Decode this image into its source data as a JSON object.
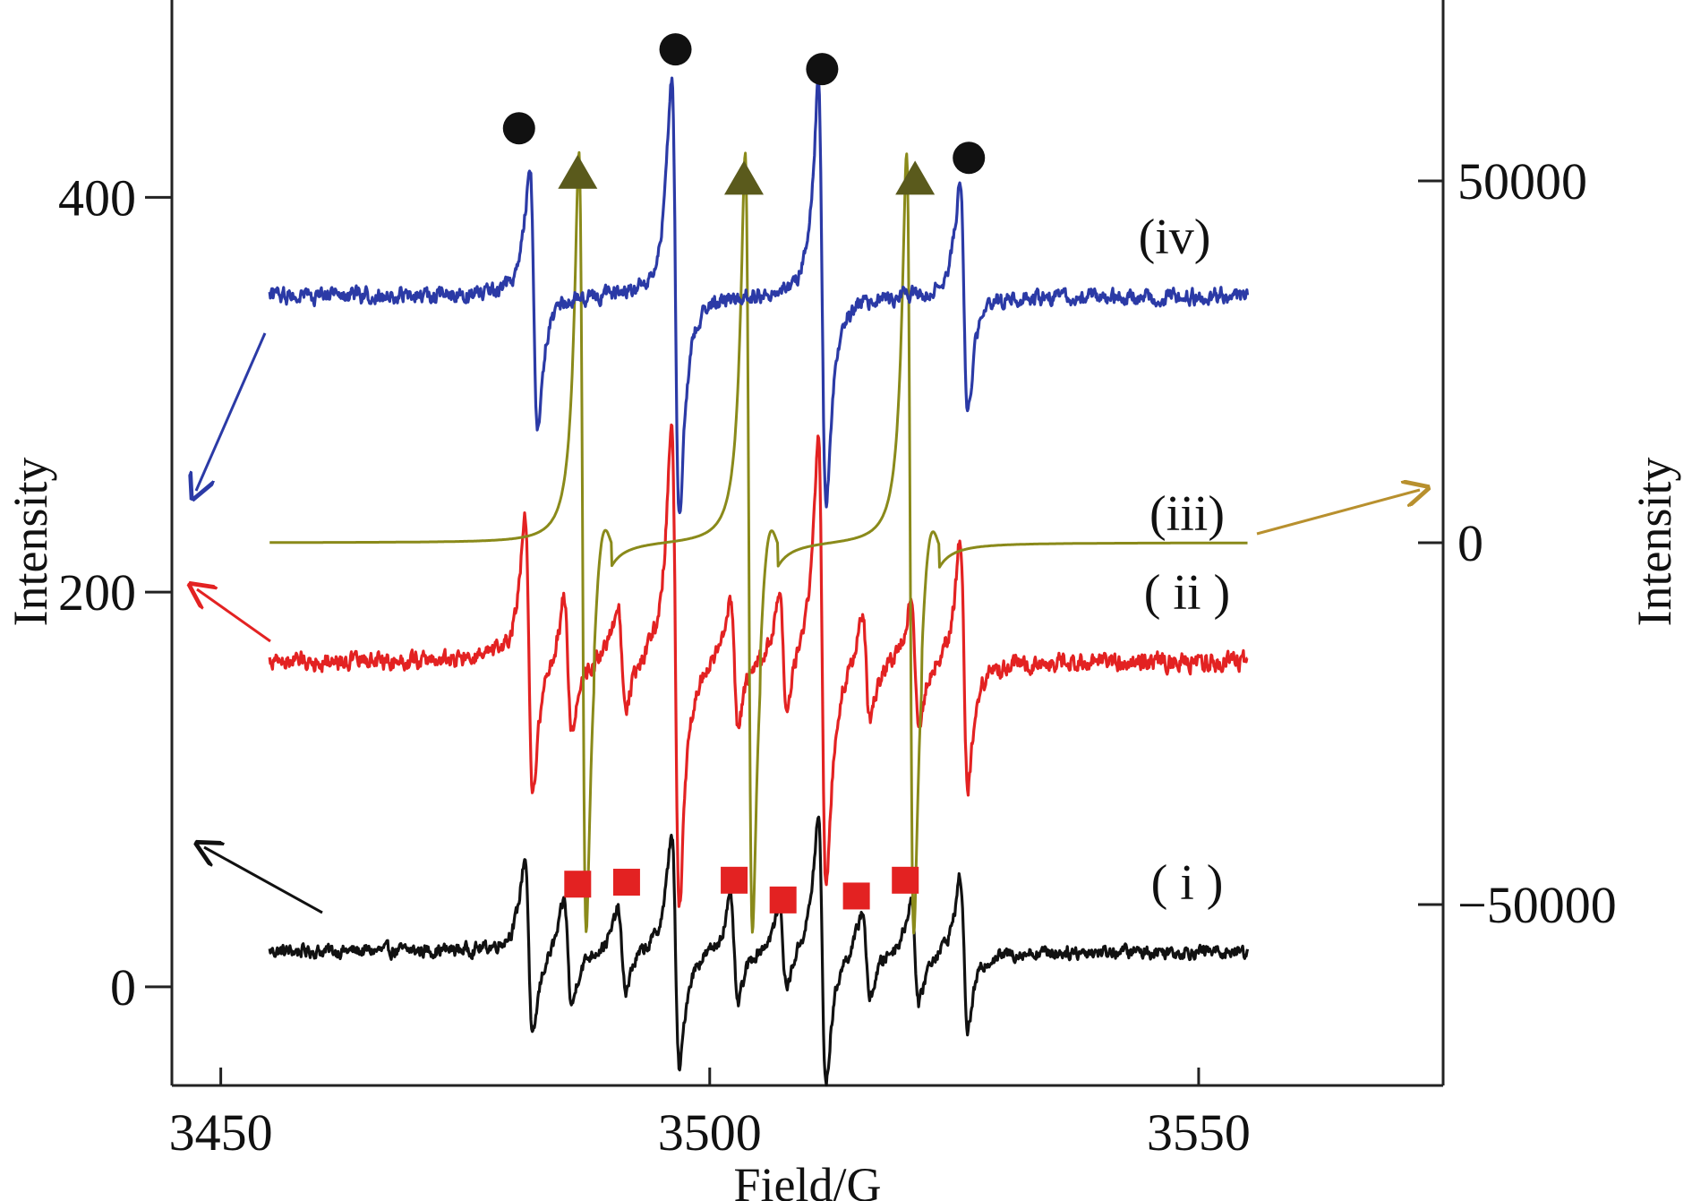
{
  "chart_data": {
    "type": "line",
    "xlabel": "Field/G",
    "ylabel_left": "Intensity",
    "ylabel_right": "Intensity",
    "xlim": [
      3445,
      3575
    ],
    "ylim_left": [
      -50,
      500
    ],
    "ylim_right": [
      -75000,
      75000
    ],
    "xticks": [
      3450,
      3500,
      3550
    ],
    "xtick_labels": [
      "3450",
      "3500",
      "3550"
    ],
    "yticks_left": [
      0,
      200,
      400
    ],
    "ytick_labels_left": [
      "0",
      "200",
      "400"
    ],
    "yticks_right": [
      -50000,
      0,
      50000
    ],
    "ytick_labels_right": [
      "−50000",
      "0",
      "50000"
    ],
    "grid": false,
    "x_range_of_spectra": [
      3455,
      3555
    ],
    "series": [
      {
        "name": "( i )",
        "axis": "left",
        "color": "#111111",
        "baseline": 18,
        "noise": 6,
        "lines": [
          {
            "x": 3481.5,
            "amp": 48
          },
          {
            "x": 3485.5,
            "amp": 28
          },
          {
            "x": 3491.0,
            "amp": 22
          },
          {
            "x": 3496.5,
            "amp": 62
          },
          {
            "x": 3502.5,
            "amp": 28
          },
          {
            "x": 3507.5,
            "amp": 22
          },
          {
            "x": 3511.5,
            "amp": 70
          },
          {
            "x": 3516.0,
            "amp": 24
          },
          {
            "x": 3521.0,
            "amp": 28
          },
          {
            "x": 3526.0,
            "amp": 40
          }
        ]
      },
      {
        "name": "( ii )",
        "axis": "left",
        "color": "#e32222",
        "baseline": 165,
        "noise": 8,
        "lines": [
          {
            "x": 3481.5,
            "amp": 72
          },
          {
            "x": 3485.5,
            "amp": 35
          },
          {
            "x": 3491.0,
            "amp": 30
          },
          {
            "x": 3496.5,
            "amp": 128
          },
          {
            "x": 3502.5,
            "amp": 35
          },
          {
            "x": 3507.5,
            "amp": 30
          },
          {
            "x": 3511.5,
            "amp": 120
          },
          {
            "x": 3516.0,
            "amp": 30
          },
          {
            "x": 3521.0,
            "amp": 35
          },
          {
            "x": 3526.0,
            "amp": 65
          }
        ]
      },
      {
        "name": "(iii)",
        "axis": "right",
        "color": "#8a8a1a",
        "baseline": 0,
        "noise": 0,
        "lines": [
          {
            "x": 3487.0,
            "amp": 56000
          },
          {
            "x": 3504.0,
            "amp": 56000
          },
          {
            "x": 3520.5,
            "amp": 56000
          }
        ]
      },
      {
        "name": "(iv)",
        "axis": "left",
        "color": "#2b3aa6",
        "baseline": 350,
        "noise": 7,
        "lines": [
          {
            "x": 3482.0,
            "amp": 68
          },
          {
            "x": 3496.5,
            "amp": 115
          },
          {
            "x": 3511.5,
            "amp": 110
          },
          {
            "x": 3526.0,
            "amp": 60
          }
        ]
      }
    ],
    "markers": [
      {
        "shape": "circle",
        "color": "#111111",
        "positions": [
          {
            "x": 3480.5,
            "y": 435
          },
          {
            "x": 3496.5,
            "y": 475
          },
          {
            "x": 3511.5,
            "y": 465
          },
          {
            "x": 3526.5,
            "y": 420
          }
        ]
      },
      {
        "shape": "triangle",
        "color": "#5a5a1c",
        "positions": [
          {
            "x": 3486.5,
            "y": 413
          },
          {
            "x": 3503.5,
            "y": 410
          },
          {
            "x": 3521.0,
            "y": 410
          }
        ]
      },
      {
        "shape": "square",
        "color": "#e32222",
        "positions": [
          {
            "x": 3486.5,
            "y": 52
          },
          {
            "x": 3491.5,
            "y": 53
          },
          {
            "x": 3502.5,
            "y": 54
          },
          {
            "x": 3507.5,
            "y": 44
          },
          {
            "x": 3515.0,
            "y": 46
          },
          {
            "x": 3520.0,
            "y": 54
          }
        ]
      }
    ],
    "annotations": [
      {
        "text": "(iv)",
        "series": "(iv)"
      },
      {
        "text": "(iii)",
        "series": "(iii)"
      },
      {
        "text": "( ii )",
        "series": "( ii )"
      },
      {
        "text": "( i )",
        "series": "( i )"
      }
    ]
  }
}
